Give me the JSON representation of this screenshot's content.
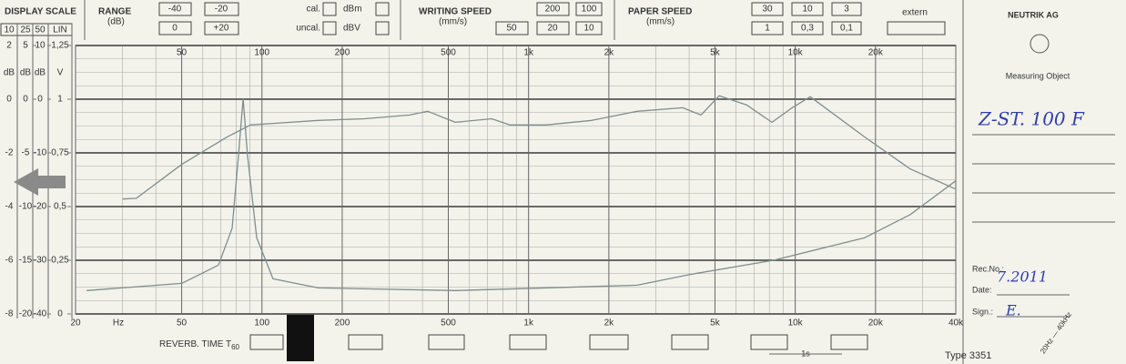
{
  "header": {
    "display_scale": "DISPLAY SCALE",
    "range": {
      "title": "RANGE",
      "unit": "(dB)",
      "options": [
        "-40",
        "-20",
        "0",
        "+20"
      ]
    },
    "cal": [
      "cal.",
      "uncal."
    ],
    "level": [
      "dBm",
      "dBV"
    ],
    "writing_speed": {
      "title": "WRITING SPEED",
      "unit": "(mm/s)",
      "options": [
        "200",
        "100",
        "50",
        "20",
        "10"
      ]
    },
    "paper_speed": {
      "title": "PAPER SPEED",
      "unit": "(mm/s)",
      "options": [
        "30",
        "10",
        "3",
        "1",
        "0,3",
        "0,1"
      ],
      "extern": "extern"
    }
  },
  "side": {
    "brand": "NEUTRIK AG",
    "measuring_object": "Measuring Object",
    "object": "Z-ST. 100 F",
    "rec_no": "Rec.No.:",
    "rec_value": "7.2011",
    "date": "Date:",
    "sign": "Sign.:",
    "sign_value": "E.",
    "range_note": "20Hz — 40kHz"
  },
  "footer": {
    "reverb": "REVERB. TIME T",
    "reverb_sub": "60",
    "one_s": "1s",
    "type": "Type 3351"
  },
  "chart_data": {
    "type": "line",
    "xscale": "log",
    "x_unit": "Hz",
    "xlim": [
      20,
      40000
    ],
    "xticks": [
      20,
      50,
      100,
      200,
      500,
      {
        "value": 1000,
        "label": "1k"
      },
      {
        "value": 2000,
        "label": "2k"
      },
      {
        "value": 5000,
        "label": "5k"
      },
      {
        "value": 10000,
        "label": "10k"
      },
      {
        "value": 20000,
        "label": "20k"
      },
      {
        "value": 40000,
        "label": "40k"
      }
    ],
    "x_minor_ticks": [
      30,
      40,
      60,
      70,
      80,
      90,
      300,
      400,
      600,
      700,
      800,
      900,
      3000,
      4000,
      6000,
      7000,
      8000,
      9000,
      30000
    ],
    "y_header": "10",
    "y_unit": "dB",
    "ylim": [
      -8,
      2
    ],
    "yticks": [
      -8,
      -6,
      -4,
      -2,
      0,
      2
    ],
    "y_minor_ticks": [
      -7.5,
      -7,
      -6.5,
      -5.5,
      -5,
      -4.5,
      -3.5,
      -3,
      -2.5,
      -1.5,
      -1,
      -0.5,
      0.5,
      1,
      1.5
    ],
    "extra_scales": [
      {
        "header": "25",
        "unit": "dB",
        "lim": [
          -20,
          5
        ],
        "ticks": [
          -20,
          -15,
          -10,
          -5,
          0,
          5
        ]
      },
      {
        "header": "50",
        "unit": "dB",
        "lim": [
          -40,
          10
        ],
        "ticks": [
          -40,
          -30,
          -20,
          -10,
          0,
          10
        ]
      },
      {
        "header": "LIN",
        "unit": "V",
        "lim": [
          0,
          1.25
        ],
        "ticks": [
          0,
          {
            "value": 0.25,
            "label": "0,25"
          },
          {
            "value": 0.5,
            "label": "0,5"
          },
          {
            "value": 0.75,
            "label": "0,75"
          },
          1,
          {
            "value": 1.25,
            "label": "1,25"
          }
        ]
      }
    ],
    "grid": true,
    "series": [
      {
        "color": "#7f8e8e",
        "x": [
          30,
          33.8,
          50,
          74,
          90.5,
          110,
          163,
          242,
          358,
          419,
          531,
          727,
          850,
          1164,
          1726,
          2555,
          3785,
          4430,
          5185,
          6562,
          8180,
          9730,
          11380,
          18230,
          27000,
          40000
        ],
        "values": [
          -3.72,
          -3.69,
          -2.43,
          -1.41,
          -0.96,
          -0.9,
          -0.79,
          -0.73,
          -0.59,
          -0.45,
          -0.86,
          -0.73,
          -0.96,
          -0.96,
          -0.79,
          -0.45,
          -0.32,
          -0.59,
          0.13,
          -0.21,
          -0.86,
          -0.32,
          0.09,
          -1.41,
          -2.6,
          -3.35
        ]
      },
      {
        "color": "#7f8e8e",
        "x": [
          22,
          50,
          68.7,
          77.3,
          81.7,
          85,
          88.3,
          95.6,
          110,
          163,
          531,
          2555,
          4095,
          8300,
          18230,
          27000,
          40000
        ],
        "values": [
          -7.13,
          -6.86,
          -6.18,
          -4.81,
          -2.09,
          0.02,
          -2.09,
          -5.16,
          -6.69,
          -7.03,
          -7.13,
          -6.93,
          -6.52,
          -6.0,
          -5.16,
          -4.3,
          -3.04
        ]
      }
    ]
  }
}
